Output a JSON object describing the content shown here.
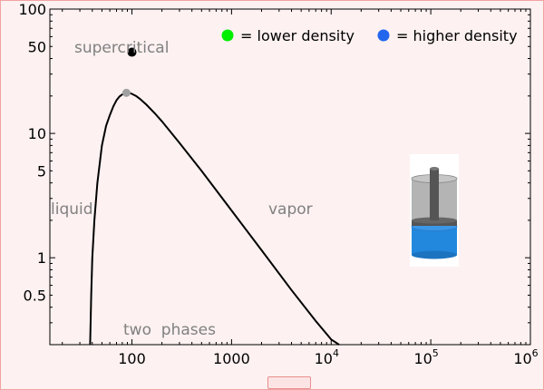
{
  "chart_data": {
    "type": "line",
    "scale": "log-log",
    "x_tick_labels": [
      "100",
      "1000",
      "10",
      "10",
      "10"
    ],
    "x_tick_exponents": [
      "",
      "",
      "4",
      "5",
      "6"
    ],
    "y_tick_labels": [
      "100",
      "50",
      "10",
      "5",
      "1",
      "0.5"
    ],
    "xlim": [
      15,
      1000000
    ],
    "ylim": [
      0.2,
      100
    ],
    "series": [
      {
        "x": [
          38,
          39,
          40,
          42,
          45,
          50,
          55,
          60,
          65,
          70,
          75,
          80,
          85,
          90,
          95,
          100,
          110,
          120,
          140,
          170,
          200,
          300,
          500,
          1000,
          2000,
          4000,
          7000,
          10000,
          12000
        ],
        "y": [
          0.2,
          0.5,
          1.0,
          2.0,
          4.0,
          8.0,
          11.5,
          14.0,
          16.5,
          18.5,
          19.8,
          20.6,
          21.0,
          21.2,
          21.1,
          20.8,
          20.0,
          19.0,
          17.0,
          14.5,
          12.5,
          8.4,
          5.0,
          2.4,
          1.15,
          0.55,
          0.31,
          0.22,
          0.2
        ]
      }
    ],
    "points": [
      {
        "x": 100,
        "y": 45,
        "color": "#000000"
      },
      {
        "x": 88,
        "y": 21.2,
        "color": "#a0a0a0"
      }
    ],
    "region_labels": {
      "supercritical": "supercritical",
      "liquid": "liquid",
      "vapor": "vapor",
      "two_phases": "two  phases"
    },
    "legend": [
      {
        "label": "= lower density",
        "color": "#00ee00"
      },
      {
        "label": "= higher density",
        "color": "#2266ee"
      }
    ]
  },
  "cylinder": {
    "gas_color": "#b4b4b4",
    "liquid_color": "#2288dd",
    "piston_color": "#555555",
    "gas_fraction": 0.55
  },
  "colors": {
    "background": "#fdf1f1",
    "border": "#f2a3a3",
    "curve": "#000000",
    "region_text": "#808080"
  }
}
